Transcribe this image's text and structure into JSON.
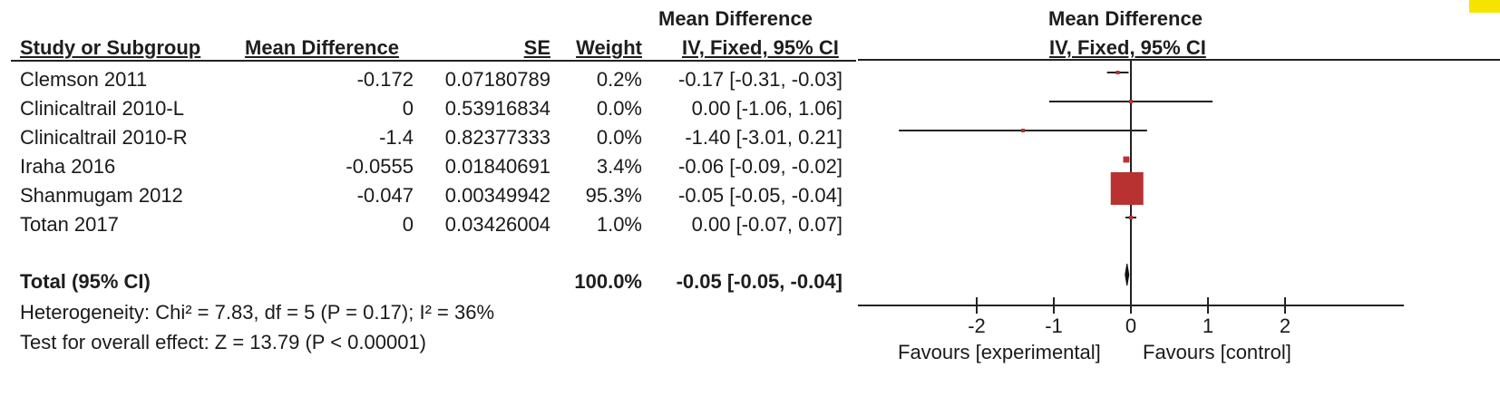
{
  "header": {
    "study": "Study or Subgroup",
    "md": "Mean Difference",
    "se": "SE",
    "weight": "Weight",
    "ci_top": "Mean Difference",
    "ci_bottom": "IV, Fixed, 95% CI",
    "plot_top": "Mean Difference",
    "plot_bottom": "IV, Fixed, 95% CI"
  },
  "rows": [
    {
      "study": "Clemson 2011",
      "md": "-0.172",
      "se": "0.07180789",
      "weight": "0.2%",
      "ci": "-0.17 [-0.31, -0.03]"
    },
    {
      "study": "Clinicaltrail 2010-L",
      "md": "0",
      "se": "0.53916834",
      "weight": "0.0%",
      "ci": "0.00 [-1.06, 1.06]"
    },
    {
      "study": "Clinicaltrail 2010-R",
      "md": "-1.4",
      "se": "0.82377333",
      "weight": "0.0%",
      "ci": "-1.40 [-3.01, 0.21]"
    },
    {
      "study": "Iraha 2016",
      "md": "-0.0555",
      "se": "0.01840691",
      "weight": "3.4%",
      "ci": "-0.06 [-0.09, -0.02]"
    },
    {
      "study": "Shanmugam 2012",
      "md": "-0.047",
      "se": "0.00349942",
      "weight": "95.3%",
      "ci": "-0.05 [-0.05, -0.04]"
    },
    {
      "study": "Totan 2017",
      "md": "0",
      "se": "0.03426004",
      "weight": "1.0%",
      "ci": "0.00 [-0.07, 0.07]"
    }
  ],
  "total": {
    "label": "Total (95% CI)",
    "weight": "100.0%",
    "ci": "-0.05 [-0.05, -0.04]"
  },
  "heterogeneity": "Heterogeneity: Chi² = 7.83, df = 5 (P = 0.17); I² = 36%",
  "overall": "Test for overall effect: Z = 13.79 (P < 0.00001)",
  "colors": {
    "marker": "#b83232",
    "line": "#222222",
    "corner": "#f5e400"
  },
  "chart_data": {
    "type": "forest",
    "xlim": [
      -3.6,
      3.6
    ],
    "ticks": [
      -2,
      -1,
      0,
      1,
      2
    ],
    "tick_labels": [
      "-2",
      "-1",
      "0",
      "1",
      "2"
    ],
    "favours_left": "Favours [experimental]",
    "favours_right": "Favours [control]",
    "studies": [
      {
        "name": "Clemson 2011",
        "estimate": -0.17,
        "lower": -0.31,
        "upper": -0.03,
        "weight": 0.2
      },
      {
        "name": "Clinicaltrail 2010-L",
        "estimate": 0.0,
        "lower": -1.06,
        "upper": 1.06,
        "weight": 0.0
      },
      {
        "name": "Clinicaltrail 2010-R",
        "estimate": -1.4,
        "lower": -3.01,
        "upper": 0.21,
        "weight": 0.0
      },
      {
        "name": "Iraha 2016",
        "estimate": -0.06,
        "lower": -0.09,
        "upper": -0.02,
        "weight": 3.4
      },
      {
        "name": "Shanmugam 2012",
        "estimate": -0.05,
        "lower": -0.05,
        "upper": -0.04,
        "weight": 95.3
      },
      {
        "name": "Totan 2017",
        "estimate": 0.0,
        "lower": -0.07,
        "upper": 0.07,
        "weight": 1.0
      }
    ],
    "total": {
      "estimate": -0.05,
      "lower": -0.05,
      "upper": -0.04
    }
  }
}
